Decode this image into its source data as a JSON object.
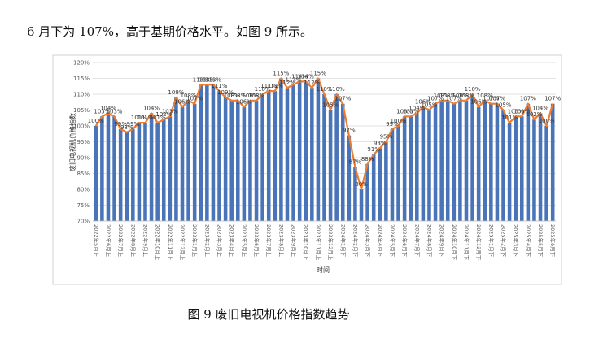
{
  "paragraph": "6 月下为 107%，高于基期价格水平。如图 9 所示。",
  "caption": "图 9  废旧电视机价格指数趋势",
  "chart_data": {
    "type": "bar",
    "x_label": "时间",
    "y_label": "废旧电视机价格指数",
    "categories": [
      "2022年5月上",
      null,
      "2022年6月上",
      null,
      "2022年7月上",
      null,
      "2022年8月上",
      null,
      "2022年9月上",
      null,
      "2022年10月上",
      null,
      "2022年11月上",
      null,
      "2022年12月上",
      null,
      "2023年1月上",
      null,
      "2023年2月上",
      null,
      "2023年3月上",
      null,
      "2023年4月上",
      null,
      "2023年5月上",
      null,
      "2023年6月上",
      null,
      "2023年7月上",
      null,
      "2023年8月上",
      null,
      "2023年9月上",
      null,
      "2023年10月上",
      null,
      "2023年11月上",
      null,
      "2023年12月上",
      null,
      "2024年1月下",
      null,
      "2024年2月下",
      null,
      "2024年3月下",
      null,
      "2024年4月下",
      null,
      "2024年5月下",
      null,
      "2024年6月下",
      null,
      "2024年7月下",
      null,
      "2024年8月下",
      null,
      "2024年9月下",
      null,
      "2024年10月下",
      null,
      "2024年11月下",
      null,
      "2024年12月下",
      null,
      "2025年1月下",
      null,
      "2025年2月下",
      null,
      "2025年3月下",
      null,
      "2025年4月下",
      null,
      "2025年5月下",
      null,
      "2025年6月下"
    ],
    "values": [
      100,
      103,
      104,
      103,
      99,
      98,
      99,
      101,
      101,
      104,
      101,
      102,
      103,
      109,
      106,
      108,
      107,
      113,
      113,
      113,
      111,
      109,
      108,
      108,
      106,
      108,
      108,
      110,
      111,
      111,
      115,
      112,
      113,
      114,
      114,
      112,
      115,
      110,
      105,
      110,
      107,
      97,
      87,
      80,
      88,
      91,
      93,
      95,
      99,
      100,
      103,
      103,
      104,
      106,
      105,
      107,
      108,
      108,
      107,
      108,
      108,
      110,
      106,
      108,
      107,
      107,
      105,
      101,
      103,
      103,
      107,
      102,
      104,
      100,
      107
    ],
    "value_labels": [
      "100%",
      "103%",
      "104%",
      "103%",
      "99%",
      "98%",
      "99%",
      "101%",
      "101%",
      "104%",
      "101%",
      "102%",
      "103%",
      "109%",
      "106%",
      "108%",
      "107%",
      "113%",
      "113%",
      "113%",
      "111%",
      "109%",
      "108%",
      "108%",
      "106%",
      "108%",
      "108%",
      "110%",
      "111%",
      "111%",
      "115%",
      "112%",
      "113%",
      "114%",
      "114%",
      "112%",
      "115%",
      "110%",
      "105%",
      "110%",
      "107%",
      "97%",
      "87%",
      "80%",
      "88%",
      "91%",
      "93%",
      "95%",
      "99%",
      "100%",
      "103%",
      "103%",
      "104%",
      "106%",
      "105%",
      "107%",
      "108%",
      "108%",
      "107%",
      "108%",
      "108%",
      "110%",
      "106%",
      "108%",
      "107%",
      "107%",
      "105%",
      "101%",
      "103%",
      "103%",
      "107%",
      "102%",
      "104%",
      "100%",
      "107%"
    ],
    "color": "#4a74b8",
    "line_color": "#ed7d31",
    "ylim": [
      70,
      120
    ],
    "yticks": [
      {
        "value": 70,
        "label": "70%"
      },
      {
        "value": 75,
        "label": "75%"
      },
      {
        "value": 80,
        "label": "80%"
      },
      {
        "value": 85,
        "label": "85%"
      },
      {
        "value": 90,
        "label": "90%"
      },
      {
        "value": 95,
        "label": "95%"
      },
      {
        "value": 100,
        "label": "100%"
      },
      {
        "value": 105,
        "label": "105%"
      },
      {
        "value": 110,
        "label": "110%"
      },
      {
        "value": 115,
        "label": "115%"
      },
      {
        "value": 120,
        "label": "120%"
      }
    ],
    "grid": true
  }
}
